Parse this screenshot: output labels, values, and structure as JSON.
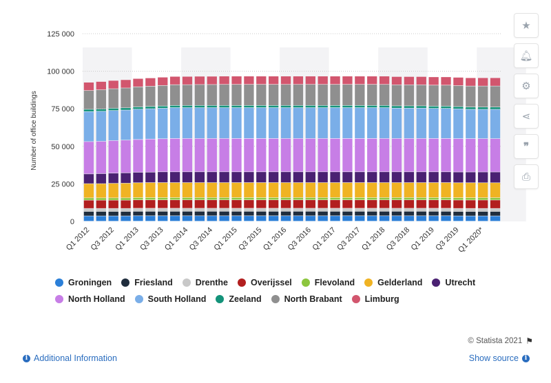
{
  "chart_data": {
    "type": "bar",
    "stacked": true,
    "title": "",
    "xlabel": "",
    "ylabel": "Number of office buildings",
    "ylim": [
      0,
      125000
    ],
    "yticks": [
      0,
      25000,
      50000,
      75000,
      100000,
      125000
    ],
    "ytick_labels": [
      "0",
      "25 000",
      "50 000",
      "75 000",
      "100 000",
      "125 000"
    ],
    "grid": true,
    "legend_position": "bottom",
    "categories": [
      "Q1 2012",
      "Q2 2012",
      "Q3 2012",
      "Q4 2012",
      "Q1 2013",
      "Q2 2013",
      "Q3 2013",
      "Q4 2013",
      "Q1 2014",
      "Q2 2014",
      "Q3 2014",
      "Q4 2014",
      "Q1 2015",
      "Q2 2015",
      "Q3 2015",
      "Q4 2015",
      "Q1 2016",
      "Q2 2016",
      "Q3 2016",
      "Q4 2016",
      "Q1 2017",
      "Q2 2017",
      "Q3 2017",
      "Q4 2017",
      "Q1 2018",
      "Q2 2018",
      "Q3 2018",
      "Q4 2018",
      "Q1 2019",
      "Q2 2019",
      "Q3 2019",
      "Q4 2019",
      "Q1 2020*",
      "Q2 2020*"
    ],
    "x_tick_labels": [
      "Q1 2012",
      "",
      "Q3 2012",
      "",
      "Q1 2013",
      "",
      "Q3 2013",
      "",
      "Q1 2014",
      "",
      "Q3 2014",
      "",
      "Q1 2015",
      "",
      "Q3 2015",
      "",
      "Q1 2016",
      "",
      "Q3 2016",
      "",
      "Q1 2017",
      "",
      "Q3 2017",
      "",
      "Q1 2018",
      "",
      "Q3 2018",
      "",
      "Q1 2019",
      "",
      "Q3 2019",
      "",
      "Q1 2020*",
      ""
    ],
    "series": [
      {
        "name": "Groningen",
        "color": "#2b7fd8",
        "values": [
          3500,
          3500,
          3500,
          3500,
          3600,
          3600,
          3600,
          3600,
          3600,
          3600,
          3600,
          3600,
          3600,
          3600,
          3600,
          3600,
          3600,
          3600,
          3600,
          3600,
          3600,
          3600,
          3600,
          3600,
          3600,
          3600,
          3600,
          3600,
          3600,
          3600,
          3500,
          3500,
          3500,
          3500
        ]
      },
      {
        "name": "Friesland",
        "color": "#1f2d3d",
        "values": [
          3000,
          3000,
          3000,
          3000,
          3000,
          3000,
          3000,
          3000,
          3000,
          3000,
          3000,
          3000,
          3000,
          3000,
          3000,
          3000,
          3000,
          3000,
          3000,
          3000,
          3000,
          3000,
          3000,
          3000,
          3000,
          3000,
          3000,
          3000,
          3000,
          3000,
          3000,
          3000,
          3000,
          3000
        ]
      },
      {
        "name": "Drenthe",
        "color": "#c8c8c8",
        "values": [
          2000,
          2000,
          2000,
          2000,
          2000,
          2000,
          2000,
          2000,
          2000,
          2000,
          2000,
          2000,
          2000,
          2000,
          2000,
          2000,
          2000,
          2000,
          2000,
          2000,
          2000,
          2000,
          2000,
          2000,
          2000,
          2000,
          2000,
          2000,
          2000,
          2000,
          2000,
          2000,
          2000,
          2000
        ]
      },
      {
        "name": "Overijssel",
        "color": "#b21f1f",
        "values": [
          5500,
          5500,
          5500,
          5500,
          5600,
          5600,
          5600,
          5600,
          5600,
          5600,
          5600,
          5600,
          5600,
          5600,
          5600,
          5600,
          5600,
          5600,
          5600,
          5600,
          5600,
          5600,
          5600,
          5600,
          5600,
          5600,
          5600,
          5600,
          5600,
          5600,
          5600,
          5600,
          5600,
          5600
        ]
      },
      {
        "name": "Flevoland",
        "color": "#8cc63e",
        "values": [
          1500,
          1500,
          1500,
          1500,
          1500,
          1500,
          1500,
          1500,
          1500,
          1500,
          1500,
          1500,
          1500,
          1500,
          1500,
          1500,
          1500,
          1500,
          1500,
          1500,
          1500,
          1500,
          1500,
          1500,
          1500,
          1500,
          1500,
          1500,
          1500,
          1500,
          1500,
          1500,
          1500,
          1500
        ]
      },
      {
        "name": "Gelderland",
        "color": "#f0b323",
        "values": [
          9500,
          9500,
          9700,
          9800,
          9900,
          10000,
          10000,
          10000,
          10000,
          10000,
          10000,
          10000,
          10000,
          10000,
          10000,
          10000,
          10000,
          10000,
          10000,
          10000,
          10000,
          10000,
          10000,
          10000,
          10000,
          10000,
          10000,
          10000,
          10000,
          10000,
          10000,
          10000,
          10000,
          10000
        ]
      },
      {
        "name": "Utrecht",
        "color": "#4a2172",
        "values": [
          6500,
          6700,
          6800,
          6900,
          7000,
          7000,
          7200,
          7200,
          7200,
          7200,
          7200,
          7200,
          7200,
          7200,
          7200,
          7200,
          7200,
          7200,
          7200,
          7200,
          7200,
          7200,
          7200,
          7200,
          7200,
          7200,
          7200,
          7200,
          7200,
          7200,
          7200,
          7200,
          7200,
          7200
        ]
      },
      {
        "name": "North Holland",
        "color": "#c77ee6",
        "values": [
          21500,
          21500,
          21700,
          21800,
          21800,
          22000,
          22000,
          22200,
          22200,
          22200,
          22200,
          22200,
          22200,
          22200,
          22200,
          22200,
          22200,
          22200,
          22200,
          22200,
          22200,
          22200,
          22200,
          22200,
          22200,
          22200,
          22200,
          22200,
          22200,
          22200,
          22200,
          22200,
          22200,
          22200
        ]
      },
      {
        "name": "South Holland",
        "color": "#7aaee8",
        "values": [
          20000,
          20000,
          20000,
          20000,
          20200,
          20200,
          20300,
          20500,
          20500,
          20500,
          20500,
          20500,
          20500,
          20500,
          20500,
          20500,
          20500,
          20500,
          20500,
          20500,
          20500,
          20500,
          20500,
          20500,
          20500,
          20200,
          20200,
          20200,
          20000,
          20000,
          19800,
          19500,
          19500,
          19500
        ]
      },
      {
        "name": "Zeeland",
        "color": "#14937a",
        "values": [
          1500,
          1500,
          1500,
          1500,
          1500,
          1500,
          1500,
          1500,
          1500,
          1500,
          1500,
          1500,
          1500,
          1500,
          1500,
          1500,
          1500,
          1500,
          1500,
          1500,
          1500,
          1500,
          1500,
          1500,
          1500,
          1500,
          1500,
          1500,
          1500,
          1500,
          1500,
          1500,
          1500,
          1500
        ]
      },
      {
        "name": "North Brabant",
        "color": "#8f8f8f",
        "values": [
          12500,
          12800,
          13000,
          13200,
          13400,
          13500,
          13700,
          13800,
          13800,
          13900,
          13900,
          14000,
          14000,
          14000,
          14000,
          14000,
          14000,
          14000,
          14000,
          14000,
          14000,
          14000,
          14000,
          14000,
          14000,
          14000,
          14000,
          14000,
          14000,
          14000,
          14000,
          14000,
          14000,
          14000
        ]
      },
      {
        "name": "Limburg",
        "color": "#d2566e",
        "values": [
          5500,
          5500,
          5500,
          5500,
          5500,
          5500,
          5500,
          5500,
          5500,
          5500,
          5500,
          5500,
          5500,
          5500,
          5500,
          5500,
          5500,
          5500,
          5500,
          5500,
          5500,
          5500,
          5500,
          5500,
          5500,
          5500,
          5500,
          5500,
          5500,
          5500,
          5500,
          5500,
          5500,
          5500
        ]
      }
    ]
  },
  "footer": {
    "credit": "© Statista 2021",
    "additional_info": "Additional Information",
    "show_source": "Show source"
  },
  "toolbar": {
    "icons": [
      "star-icon",
      "bell-icon",
      "gear-icon",
      "share-icon",
      "quote-icon",
      "print-icon"
    ]
  }
}
